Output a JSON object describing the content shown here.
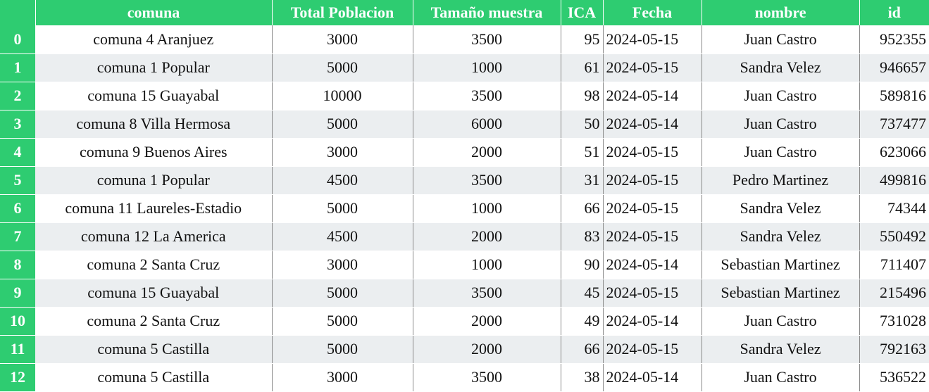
{
  "table": {
    "columns": [
      "",
      "comuna",
      "Total Poblacion",
      "Tamaño muestra",
      "ICA",
      "Fecha",
      "nombre",
      "id"
    ],
    "rows": [
      {
        "idx": "0",
        "comuna": "comuna 4 Aranjuez",
        "total": "3000",
        "muestra": "3500",
        "ica": "95",
        "fecha": "2024-05-15",
        "nombre": "Juan Castro",
        "id": "952355"
      },
      {
        "idx": "1",
        "comuna": "comuna 1 Popular",
        "total": "5000",
        "muestra": "1000",
        "ica": "61",
        "fecha": "2024-05-15",
        "nombre": "Sandra Velez",
        "id": "946657"
      },
      {
        "idx": "2",
        "comuna": "comuna 15 Guayabal",
        "total": "10000",
        "muestra": "3500",
        "ica": "98",
        "fecha": "2024-05-14",
        "nombre": "Juan Castro",
        "id": "589816"
      },
      {
        "idx": "3",
        "comuna": "comuna 8 Villa Hermosa",
        "total": "5000",
        "muestra": "6000",
        "ica": "50",
        "fecha": "2024-05-14",
        "nombre": "Juan Castro",
        "id": "737477"
      },
      {
        "idx": "4",
        "comuna": "comuna 9 Buenos Aires",
        "total": "3000",
        "muestra": "2000",
        "ica": "51",
        "fecha": "2024-05-15",
        "nombre": "Juan Castro",
        "id": "623066"
      },
      {
        "idx": "5",
        "comuna": "comuna 1 Popular",
        "total": "4500",
        "muestra": "3500",
        "ica": "31",
        "fecha": "2024-05-15",
        "nombre": "Pedro Martinez",
        "id": "499816"
      },
      {
        "idx": "6",
        "comuna": "comuna 11 Laureles-Estadio",
        "total": "5000",
        "muestra": "1000",
        "ica": "66",
        "fecha": "2024-05-15",
        "nombre": "Sandra Velez",
        "id": "74344"
      },
      {
        "idx": "7",
        "comuna": "comuna 12 La America",
        "total": "4500",
        "muestra": "2000",
        "ica": "83",
        "fecha": "2024-05-15",
        "nombre": "Sandra Velez",
        "id": "550492"
      },
      {
        "idx": "8",
        "comuna": "comuna 2 Santa Cruz",
        "total": "3000",
        "muestra": "1000",
        "ica": "90",
        "fecha": "2024-05-14",
        "nombre": "Sebastian Martinez",
        "id": "711407"
      },
      {
        "idx": "9",
        "comuna": "comuna 15 Guayabal",
        "total": "5000",
        "muestra": "3500",
        "ica": "45",
        "fecha": "2024-05-15",
        "nombre": "Sebastian Martinez",
        "id": "215496"
      },
      {
        "idx": "10",
        "comuna": "comuna 2 Santa Cruz",
        "total": "5000",
        "muestra": "2000",
        "ica": "49",
        "fecha": "2024-05-14",
        "nombre": "Juan Castro",
        "id": "731028"
      },
      {
        "idx": "11",
        "comuna": "comuna 5 Castilla",
        "total": "5000",
        "muestra": "2000",
        "ica": "66",
        "fecha": "2024-05-15",
        "nombre": "Sandra Velez",
        "id": "792163"
      },
      {
        "idx": "12",
        "comuna": "comuna 5 Castilla",
        "total": "3000",
        "muestra": "3500",
        "ica": "38",
        "fecha": "2024-05-14",
        "nombre": "Juan Castro",
        "id": "536522"
      }
    ]
  },
  "colors": {
    "header_bg": "#2ecc71",
    "header_text": "#ffffff",
    "stripe_bg": "#ebeef0"
  }
}
